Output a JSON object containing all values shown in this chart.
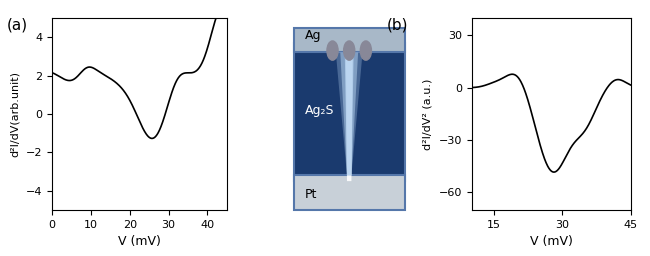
{
  "panel_a_label": "(a)",
  "panel_b_label": "(b)",
  "plot_a": {
    "xlabel": "V (mV)",
    "ylabel": "d²I/dV(arb.unit)",
    "xlim": [
      0,
      45
    ],
    "ylim": [
      -5,
      5
    ],
    "xticks": [
      0,
      10,
      20,
      30,
      40
    ],
    "yticks": [
      -4,
      -2,
      0,
      2,
      4
    ]
  },
  "plot_b": {
    "xlabel": "V (mV)",
    "ylabel": "d²I/dV² (a.u.)",
    "xlim": [
      10,
      45
    ],
    "ylim": [
      -70,
      40
    ],
    "xticks": [
      15,
      30,
      45
    ],
    "yticks": [
      -60,
      -30,
      0,
      30
    ]
  },
  "inset_labels": [
    "Ag",
    "Ag₂S",
    "Pt"
  ],
  "line_color": "#000000",
  "line_width": 1.2
}
